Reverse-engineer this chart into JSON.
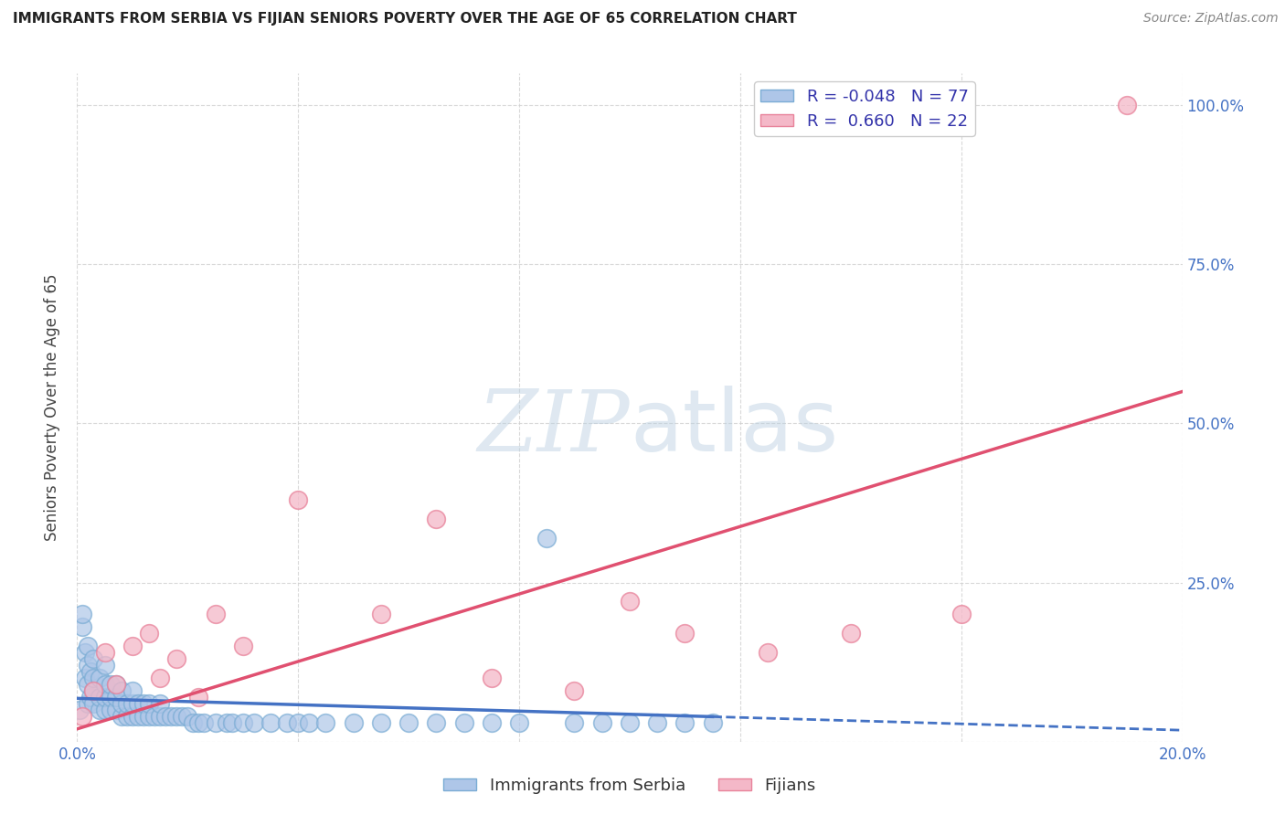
{
  "title": "IMMIGRANTS FROM SERBIA VS FIJIAN SENIORS POVERTY OVER THE AGE OF 65 CORRELATION CHART",
  "source": "Source: ZipAtlas.com",
  "ylabel": "Seniors Poverty Over the Age of 65",
  "legend_labels": [
    "Immigrants from Serbia",
    "Fijians"
  ],
  "serbia_R": -0.048,
  "serbia_N": 77,
  "fijian_R": 0.66,
  "fijian_N": 22,
  "xlim": [
    0.0,
    0.2
  ],
  "ylim": [
    0.0,
    1.05
  ],
  "xtick_vals": [
    0.0,
    0.04,
    0.08,
    0.12,
    0.16,
    0.2
  ],
  "xtick_labels": [
    "0.0%",
    "",
    "",
    "",
    "",
    "20.0%"
  ],
  "ytick_vals": [
    0.0,
    0.25,
    0.5,
    0.75,
    1.0
  ],
  "ytick_labels": [
    "",
    "25.0%",
    "50.0%",
    "75.0%",
    "100.0%"
  ],
  "serbia_color": "#aec6e8",
  "serbia_edge_color": "#7aacd4",
  "serbia_line_color": "#4472c4",
  "fijian_color": "#f4b8c8",
  "fijian_edge_color": "#e8829a",
  "fijian_line_color": "#e05070",
  "serbia_scatter_x": [
    0.0005,
    0.001,
    0.001,
    0.0015,
    0.0015,
    0.002,
    0.002,
    0.002,
    0.002,
    0.0025,
    0.0025,
    0.003,
    0.003,
    0.003,
    0.003,
    0.004,
    0.004,
    0.004,
    0.005,
    0.005,
    0.005,
    0.005,
    0.006,
    0.006,
    0.006,
    0.007,
    0.007,
    0.007,
    0.008,
    0.008,
    0.008,
    0.009,
    0.009,
    0.01,
    0.01,
    0.01,
    0.011,
    0.011,
    0.012,
    0.012,
    0.013,
    0.013,
    0.014,
    0.015,
    0.015,
    0.016,
    0.017,
    0.018,
    0.019,
    0.02,
    0.021,
    0.022,
    0.023,
    0.025,
    0.027,
    0.028,
    0.03,
    0.032,
    0.035,
    0.038,
    0.04,
    0.042,
    0.045,
    0.05,
    0.055,
    0.06,
    0.065,
    0.07,
    0.075,
    0.08,
    0.085,
    0.09,
    0.095,
    0.1,
    0.105,
    0.11,
    0.115
  ],
  "serbia_scatter_y": [
    0.05,
    0.18,
    0.2,
    0.1,
    0.14,
    0.06,
    0.09,
    0.12,
    0.15,
    0.07,
    0.11,
    0.06,
    0.08,
    0.1,
    0.13,
    0.05,
    0.07,
    0.1,
    0.05,
    0.07,
    0.09,
    0.12,
    0.05,
    0.07,
    0.09,
    0.05,
    0.07,
    0.09,
    0.04,
    0.06,
    0.08,
    0.04,
    0.06,
    0.04,
    0.06,
    0.08,
    0.04,
    0.06,
    0.04,
    0.06,
    0.04,
    0.06,
    0.04,
    0.04,
    0.06,
    0.04,
    0.04,
    0.04,
    0.04,
    0.04,
    0.03,
    0.03,
    0.03,
    0.03,
    0.03,
    0.03,
    0.03,
    0.03,
    0.03,
    0.03,
    0.03,
    0.03,
    0.03,
    0.03,
    0.03,
    0.03,
    0.03,
    0.03,
    0.03,
    0.03,
    0.32,
    0.03,
    0.03,
    0.03,
    0.03,
    0.03,
    0.03
  ],
  "fijian_scatter_x": [
    0.001,
    0.003,
    0.005,
    0.007,
    0.01,
    0.013,
    0.015,
    0.018,
    0.022,
    0.025,
    0.03,
    0.04,
    0.055,
    0.065,
    0.075,
    0.09,
    0.1,
    0.11,
    0.125,
    0.14,
    0.16,
    0.19
  ],
  "fijian_scatter_y": [
    0.04,
    0.08,
    0.14,
    0.09,
    0.15,
    0.17,
    0.1,
    0.13,
    0.07,
    0.2,
    0.15,
    0.38,
    0.2,
    0.35,
    0.1,
    0.08,
    0.22,
    0.17,
    0.14,
    0.17,
    0.2,
    1.0
  ],
  "serbia_line_x0": 0.0,
  "serbia_line_x1": 0.115,
  "serbia_line_x_dash0": 0.115,
  "serbia_line_x_dash1": 0.2,
  "serbia_line_y0": 0.068,
  "serbia_line_slope": -0.25,
  "fijian_line_x0": 0.0,
  "fijian_line_x1": 0.2,
  "fijian_line_y0": 0.02,
  "fijian_line_slope": 2.65,
  "watermark_text": "ZIPatlas",
  "background_color": "#ffffff",
  "grid_color": "#d0d0d0",
  "tick_color": "#4472c4",
  "title_color": "#222222",
  "source_color": "#888888",
  "ylabel_color": "#444444"
}
